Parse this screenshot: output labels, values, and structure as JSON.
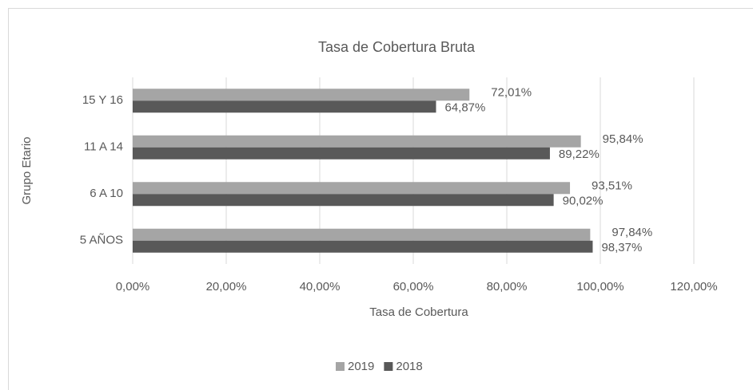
{
  "chart_data": {
    "type": "bar",
    "orientation": "horizontal",
    "title": "Tasa de Cobertura Bruta",
    "x_label": "Tasa de Cobertura",
    "y_label": "Grupo Etario",
    "categories": [
      "5 AÑOS",
      "6 A 10",
      "11 A 14",
      "15 Y 16"
    ],
    "series": [
      {
        "name": "2019",
        "color": "#a5a5a5",
        "values": [
          97.84,
          93.51,
          95.84,
          72.01
        ],
        "value_labels": [
          "97,84%",
          "93,51%",
          "95,84%",
          "72,01%"
        ]
      },
      {
        "name": "2018",
        "color": "#595959",
        "values": [
          98.37,
          90.02,
          89.22,
          64.87
        ],
        "value_labels": [
          "98,37%",
          "90,02%",
          "89,22%",
          "64,87%"
        ]
      }
    ],
    "xlim": [
      0,
      120
    ],
    "xticks": [
      {
        "value": 0,
        "label": "0,00%"
      },
      {
        "value": 20,
        "label": "20,00%"
      },
      {
        "value": 40,
        "label": "40,00%"
      },
      {
        "value": 60,
        "label": "60,00%"
      },
      {
        "value": 80,
        "label": "80,00%"
      },
      {
        "value": 100,
        "label": "100,00%"
      },
      {
        "value": 120,
        "label": "120,00%"
      }
    ],
    "grid": true,
    "legend": "bottom"
  }
}
